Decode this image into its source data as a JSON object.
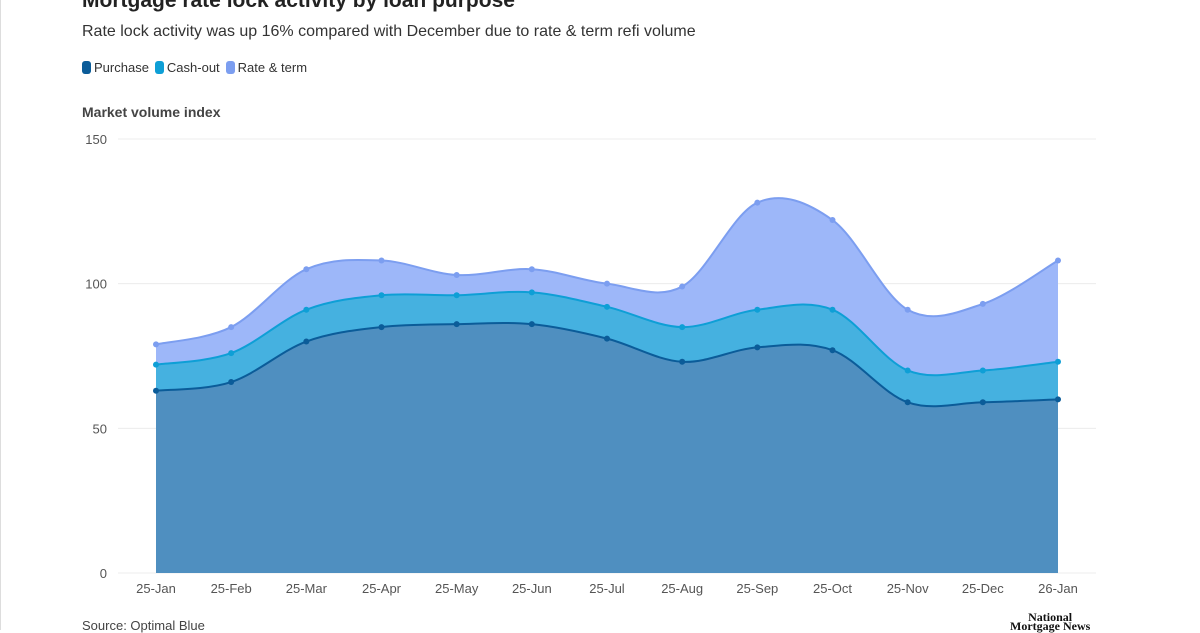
{
  "chart_data": {
    "type": "area",
    "stacked": true,
    "title": "Mortgage rate lock activity by loan purpose",
    "subtitle": "Rate lock activity was up 16% compared with December due to rate & term refi volume",
    "ylabel": "Market volume index",
    "xlabel": "",
    "ylim": [
      0,
      150
    ],
    "yticks": [
      0,
      50,
      100,
      150
    ],
    "grid": true,
    "legend": "top-left",
    "categories": [
      "25-Jan",
      "25-Feb",
      "25-Mar",
      "25-Apr",
      "25-May",
      "25-Jun",
      "25-Jul",
      "25-Aug",
      "25-Sep",
      "25-Oct",
      "25-Nov",
      "25-Dec",
      "26-Jan"
    ],
    "series": [
      {
        "name": "Purchase",
        "line_color": "#0b5c99",
        "fill_color": "#4f8fc0",
        "values": [
          63,
          66,
          80,
          85,
          86,
          86,
          81,
          73,
          78,
          77,
          59,
          59,
          60
        ]
      },
      {
        "name": "Cash-out",
        "line_color": "#0e9fd6",
        "fill_color": "#45b1e0",
        "values": [
          9,
          10,
          11,
          11,
          10,
          11,
          11,
          12,
          13,
          14,
          11,
          11,
          13
        ]
      },
      {
        "name": "Rate & term",
        "line_color": "#7c9ef0",
        "fill_color": "#9db7f9",
        "values": [
          7,
          9,
          14,
          12,
          7,
          8,
          8,
          14,
          37,
          31,
          21,
          23,
          35
        ]
      }
    ],
    "source": "Source: Optimal Blue"
  },
  "branding": {
    "logo_text": "National Mortgage News"
  }
}
